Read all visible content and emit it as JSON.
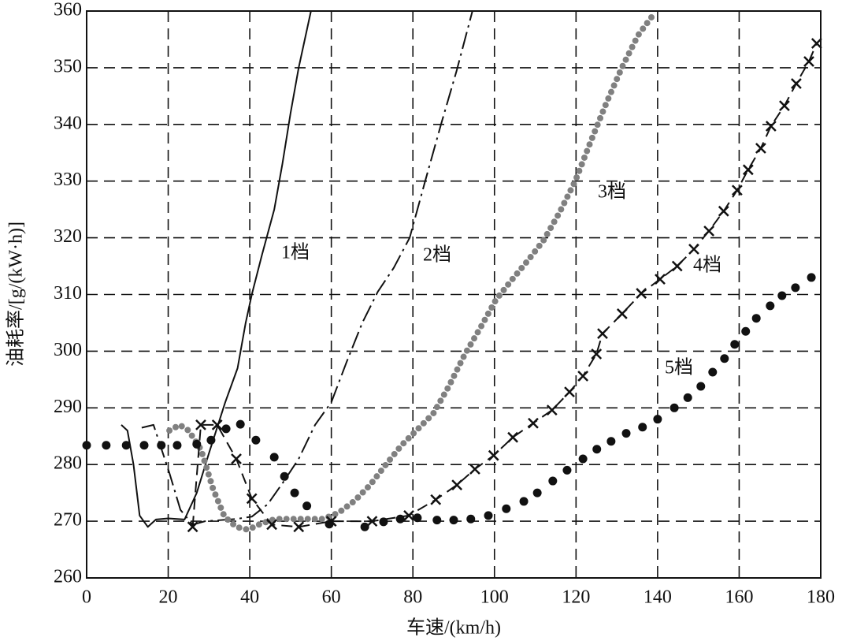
{
  "chart_data": {
    "type": "line",
    "xlabel": "车速/(km/h)",
    "ylabel": "油耗率/[g/(kW·h)]",
    "xlim": [
      0,
      180
    ],
    "xticks": [
      0,
      20,
      40,
      60,
      80,
      100,
      120,
      140,
      160,
      180
    ],
    "ylim": [
      260,
      360
    ],
    "yticks": [
      260,
      270,
      280,
      290,
      300,
      310,
      320,
      330,
      340,
      350,
      360
    ],
    "grid": true,
    "series": [
      {
        "name": "1档",
        "color": "#111111",
        "style": "solid",
        "x": [
          8.5,
          10,
          11.5,
          13,
          15,
          17,
          20,
          24,
          27,
          30,
          34,
          37,
          39,
          40.5,
          43,
          46,
          48,
          50,
          52,
          55
        ],
        "values": [
          287,
          286,
          280,
          271,
          269,
          270.3,
          270.5,
          270.3,
          275,
          282,
          291,
          297,
          305,
          310,
          317,
          325,
          333,
          342,
          350,
          360
        ]
      },
      {
        "name": "2档",
        "color": "#111111",
        "style": "dashdot",
        "x": [
          13.5,
          16.4,
          20.3,
          23,
          26,
          29,
          36.7,
          40.5,
          44.4,
          48.3,
          52,
          56,
          60,
          63.7,
          67.6,
          71.4,
          75.3,
          79.2,
          83,
          86.9,
          90.7,
          94.6
        ],
        "values": [
          286.5,
          287,
          278.5,
          272,
          269.4,
          270,
          270.4,
          270.8,
          273,
          277,
          281,
          287,
          291,
          298,
          305,
          310.5,
          314.7,
          320,
          330,
          340,
          349.4,
          360
        ]
      },
      {
        "name": "3档",
        "color": "#808080",
        "style": "dots",
        "x": [
          20.3,
          22.8,
          25,
          28,
          31,
          33.8,
          36.7,
          39.6,
          42.5,
          46.3,
          52,
          58,
          61.8,
          65.7,
          69.5,
          73.4,
          77.2,
          81,
          85,
          88.8,
          92.7,
          96.6,
          100.4,
          104.3,
          108.2,
          112,
          115.9,
          119.8,
          123.6,
          127.5,
          131.3,
          135.2,
          139
        ],
        "values": [
          286,
          287,
          286,
          282.7,
          275.7,
          270.8,
          269,
          268.5,
          269.5,
          270.4,
          270.4,
          270.4,
          271.5,
          273.6,
          276.4,
          280,
          283.4,
          286.1,
          289,
          293.8,
          299.4,
          304.2,
          309.1,
          312.6,
          316,
          319.5,
          324.4,
          330,
          337,
          343.9,
          350.1,
          355.7,
          359.4
        ]
      },
      {
        "name": "4档",
        "color": "#111111",
        "style": "dashed-x",
        "x": [
          26,
          28,
          32,
          36.7,
          40.5,
          45.4,
          52,
          60,
          70,
          79,
          85.6,
          90.8,
          95.2,
          99.8,
          104.5,
          109.5,
          114.1,
          118.4,
          121.7,
          125,
          126.5,
          131.3,
          136,
          140.6,
          144.8,
          148.9,
          152.6,
          156.2,
          159.5,
          162.2,
          165.3,
          167.8,
          171.1,
          174,
          177.1,
          179
        ],
        "values": [
          269,
          287,
          287,
          281,
          274,
          269.4,
          269,
          270,
          270,
          271,
          273.8,
          276.4,
          279.2,
          281.6,
          284.8,
          287.3,
          289.6,
          292.8,
          295.6,
          299.5,
          303.1,
          306.6,
          310.2,
          312.7,
          315,
          318,
          321.2,
          324.7,
          328.4,
          332,
          335.8,
          339.7,
          343.3,
          347.2,
          351.1,
          354.3
        ]
      },
      {
        "name": "5档",
        "color": "#111111",
        "style": "markers",
        "x": [
          0,
          4.8,
          9.7,
          14.1,
          18.3,
          22.2,
          27,
          30.5,
          34.2,
          37.7,
          41.5,
          46,
          48.5,
          51,
          54,
          59.5,
          68.2,
          72.8,
          76.9,
          81.1,
          85.9,
          90,
          94.2,
          98.5,
          102.9,
          107.2,
          110.5,
          114.3,
          117.8,
          121.7,
          125.1,
          128.6,
          132.3,
          136.3,
          140,
          144.1,
          147.4,
          150.6,
          153.5,
          156.4,
          158.9,
          161.6,
          164.2,
          167.6,
          170.5,
          173.8,
          177.7
        ],
        "values": [
          283.4,
          283.4,
          283.4,
          283.4,
          283.4,
          283.4,
          283.6,
          284.3,
          286.3,
          287.1,
          284.3,
          281.3,
          277.9,
          275,
          272.7,
          269.5,
          269,
          269.9,
          270.4,
          270.6,
          270.2,
          270.2,
          270.4,
          271,
          272.2,
          273.5,
          275,
          277.1,
          279,
          281,
          282.7,
          284.1,
          285.5,
          286.6,
          288,
          290,
          291.8,
          293.8,
          296.3,
          298.7,
          301.2,
          303.5,
          305.8,
          308,
          309.8,
          311.2,
          313
        ]
      }
    ]
  }
}
